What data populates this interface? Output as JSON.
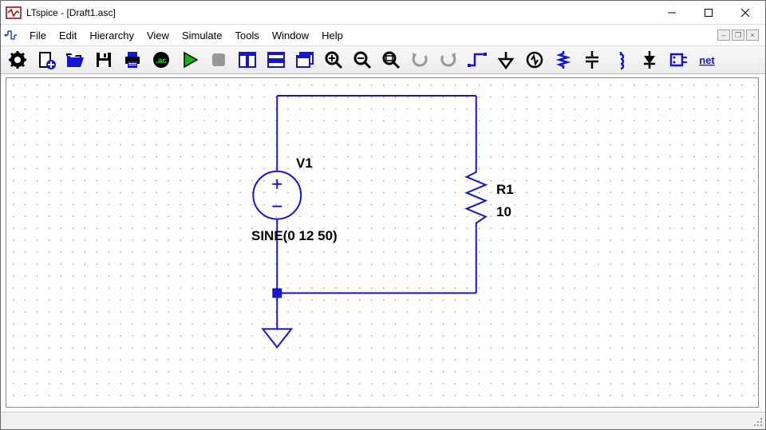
{
  "window": {
    "title": "LTspice - [Draft1.asc]"
  },
  "menus": [
    "File",
    "Edit",
    "Hierarchy",
    "View",
    "Simulate",
    "Tools",
    "Window",
    "Help"
  ],
  "toolbar": [
    "settings",
    "new",
    "open",
    "save",
    "print",
    "log",
    "run",
    "stop",
    "tile-v",
    "cascade",
    "windows",
    "zoom-in",
    "zoom-out",
    "zoom-fit",
    "undo",
    "redo",
    "wire",
    "ground",
    "voltage",
    "spice",
    "diode",
    "inductor",
    "schottky",
    "drag",
    "net"
  ],
  "schematic": {
    "voltage_source": {
      "name": "V1",
      "value": "SINE(0 12 50)"
    },
    "resistor": {
      "name": "R1",
      "value": "10"
    },
    "colors": {
      "wire": "#1414d2",
      "node": "#1414d2",
      "dot": "#9a9a9a",
      "text": "#000000"
    },
    "grid": {
      "spacing": 15,
      "cols": 63,
      "rows": 28
    }
  }
}
